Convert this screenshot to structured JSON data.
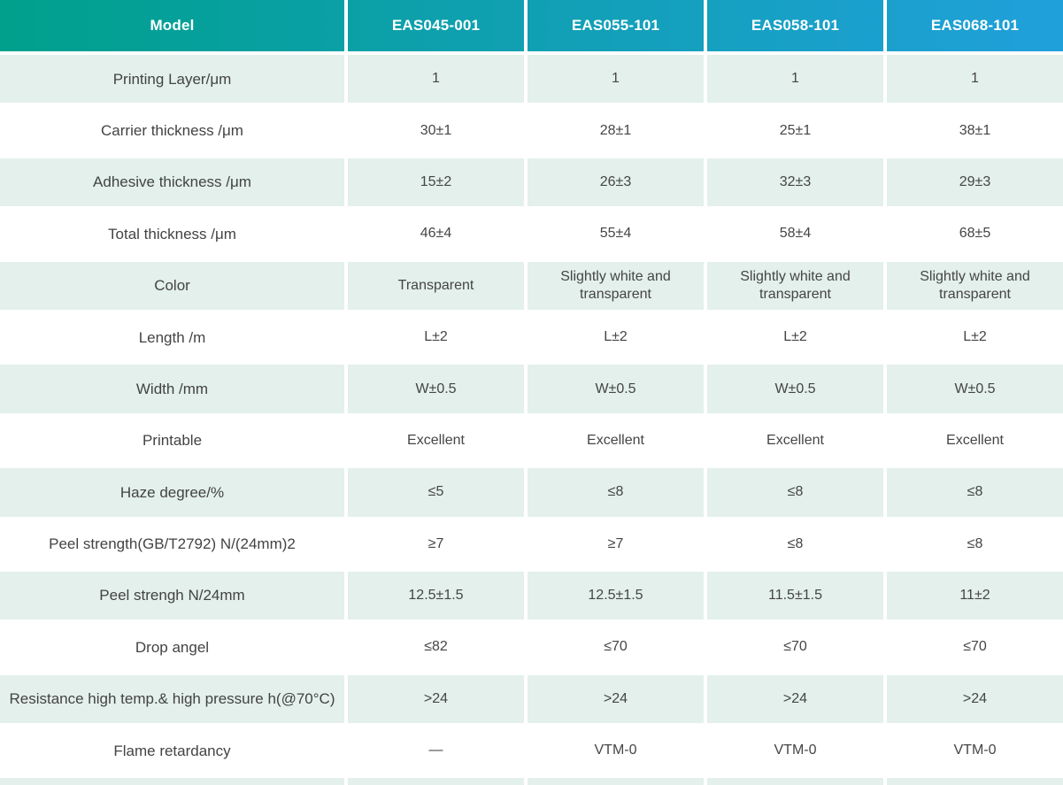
{
  "colors": {
    "header_gradient_start": "#00a08c",
    "header_gradient_end": "#20a0db",
    "row_highlight": "#e3f0eb",
    "header_text": "#ffffff",
    "body_text": "#454545"
  },
  "table": {
    "header": {
      "label": "Model",
      "columns": [
        "EAS045-001",
        "EAS055-101",
        "EAS058-101",
        "EAS068-101"
      ]
    },
    "rows": [
      {
        "label": "Printing Layer/μm",
        "values": [
          "1",
          "1",
          "1",
          "1"
        ]
      },
      {
        "label": "Carrier thickness /μm",
        "values": [
          "30±1",
          "28±1",
          "25±1",
          "38±1"
        ]
      },
      {
        "label": "Adhesive thickness /μm",
        "values": [
          "15±2",
          "26±3",
          "32±3",
          "29±3"
        ]
      },
      {
        "label": "Total thickness /μm",
        "values": [
          "46±4",
          "55±4",
          "58±4",
          "68±5"
        ]
      },
      {
        "label": "Color",
        "values": [
          "Transparent",
          "Slightly white and transparent",
          "Slightly white and transparent",
          "Slightly white and transparent"
        ]
      },
      {
        "label": "Length /m",
        "values": [
          "L±2",
          "L±2",
          "L±2",
          "L±2"
        ]
      },
      {
        "label": "Width /mm",
        "values": [
          "W±0.5",
          "W±0.5",
          "W±0.5",
          "W±0.5"
        ]
      },
      {
        "label": "Printable",
        "values": [
          "Excellent",
          "Excellent",
          "Excellent",
          "Excellent"
        ]
      },
      {
        "label": "Haze degree/%",
        "values": [
          "≤5",
          "≤8",
          "≤8",
          "≤8"
        ]
      },
      {
        "label": "Peel strength(GB/T2792)  N/(24mm)2",
        "values": [
          "≥7",
          "≥7",
          "≤8",
          "≤8"
        ]
      },
      {
        "label": "Peel strengh N/24mm",
        "values": [
          "12.5±1.5",
          "12.5±1.5",
          "11.5±1.5",
          "11±2"
        ]
      },
      {
        "label": "Drop angel",
        "values": [
          "≤82",
          "≤70",
          "≤70",
          "≤70"
        ]
      },
      {
        "label": "Resistance high temp.& high pressure h(@70°C)",
        "values": [
          ">24",
          ">24",
          ">24",
          ">24"
        ]
      },
      {
        "label": "Flame retardancy",
        "values": [
          "—",
          "VTM-0",
          "VTM-0",
          "VTM-0"
        ]
      }
    ]
  }
}
